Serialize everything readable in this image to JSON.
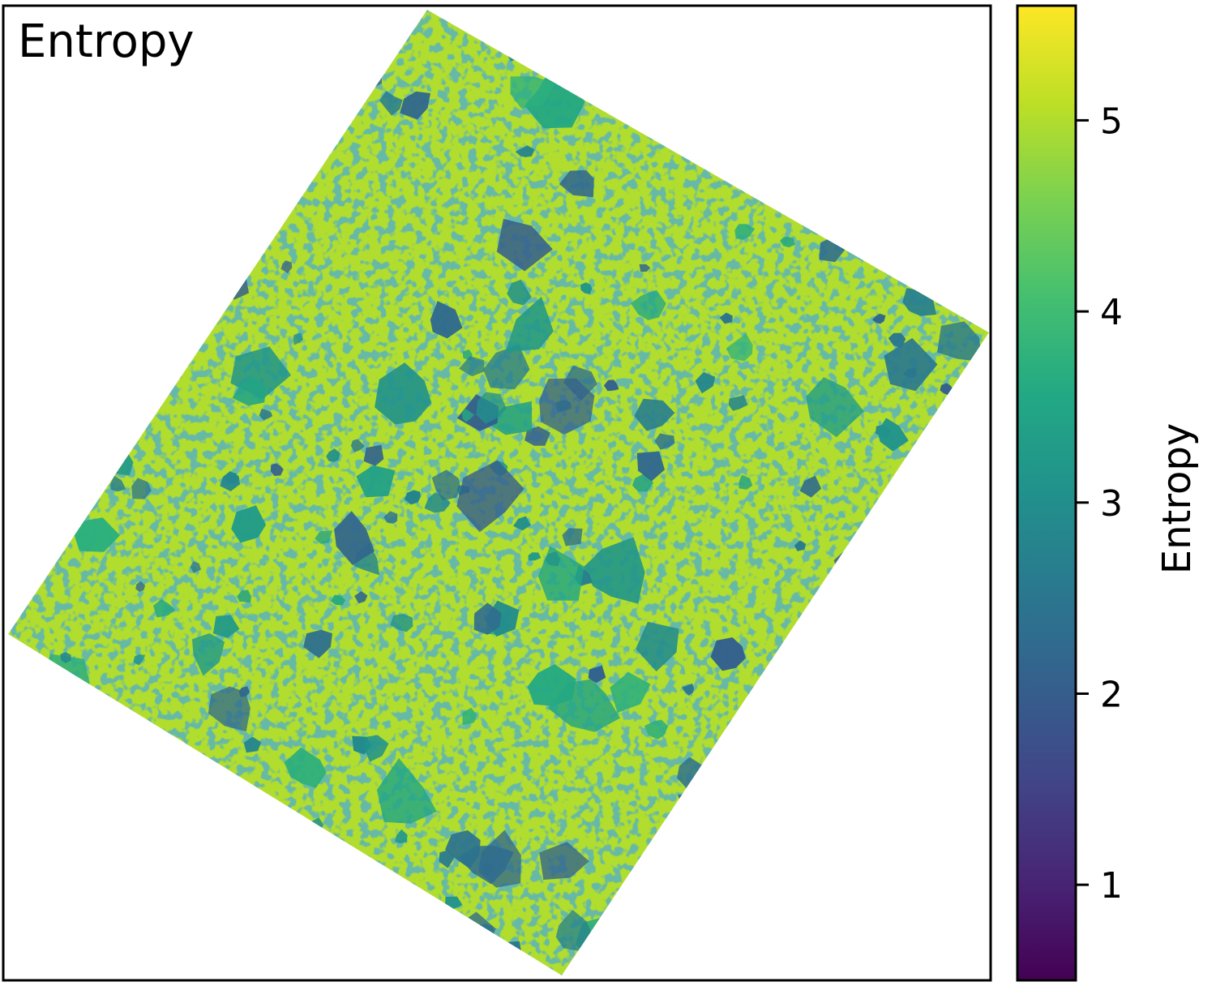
{
  "chart_data": {
    "type": "heatmap",
    "title": "Entropy",
    "colorbar": {
      "label": "Entropy",
      "colormap": "viridis",
      "range": [
        0.5,
        5.6
      ],
      "ticks": [
        1,
        2,
        3,
        4,
        5
      ],
      "tick_labels": [
        "1",
        "2",
        "3",
        "4",
        "5"
      ]
    },
    "map": {
      "description": "rotated entropy map of an aggregate cross-section",
      "dominant_value_range": [
        4.5,
        5.5
      ],
      "inclusion_value_range": [
        2.0,
        3.8
      ],
      "background_color": "#ffffff"
    },
    "grid": false
  }
}
